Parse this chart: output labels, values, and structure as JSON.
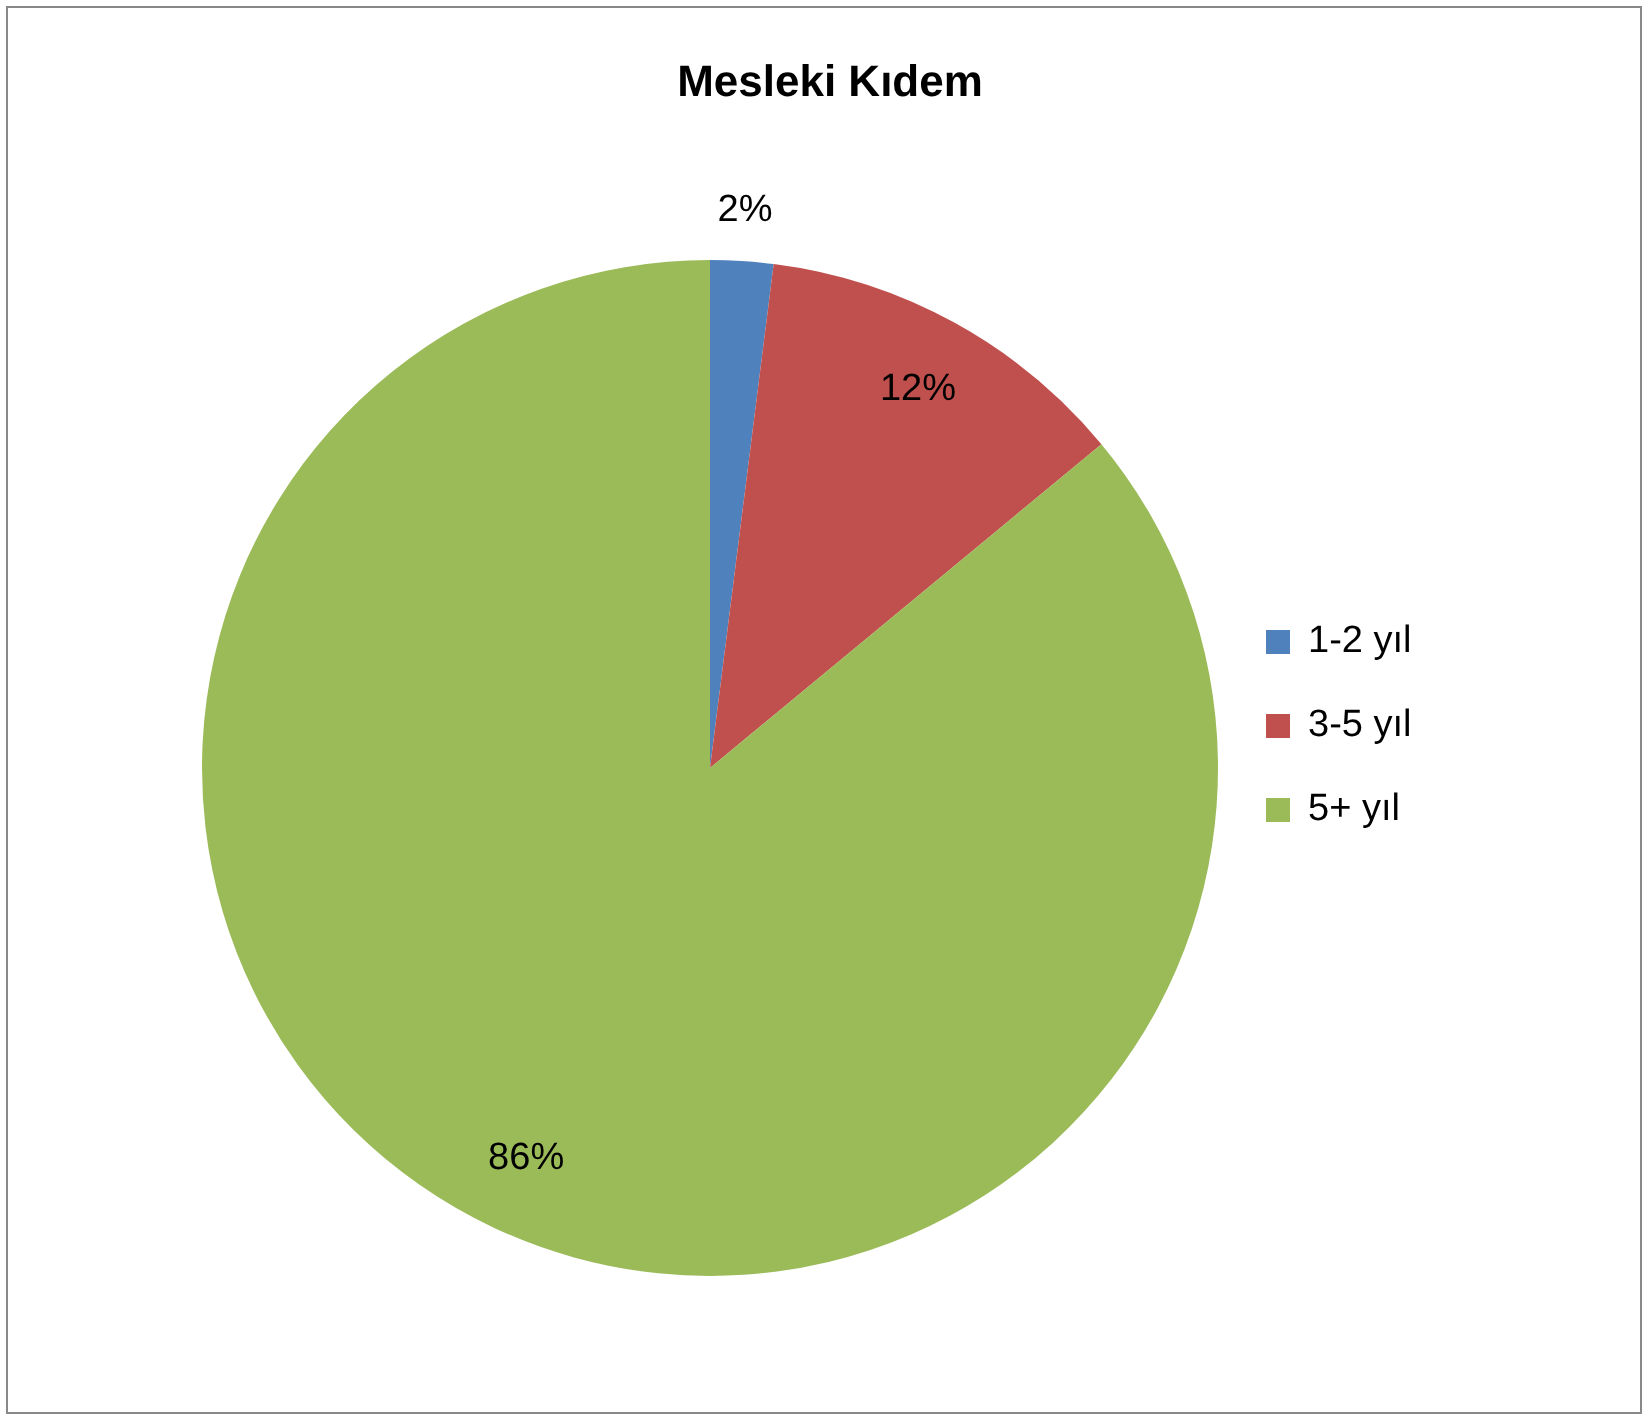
{
  "chart_data": {
    "type": "pie",
    "title": "Mesleki Kıdem",
    "categories": [
      "1-2 yıl",
      "3-5 yıl",
      "5+ yıl"
    ],
    "values": [
      2,
      12,
      86
    ],
    "colors": [
      "#4f81bd",
      "#c0504d",
      "#9bbb59"
    ],
    "value_labels": [
      "2%",
      "12%",
      "86%"
    ],
    "legend": "right"
  }
}
